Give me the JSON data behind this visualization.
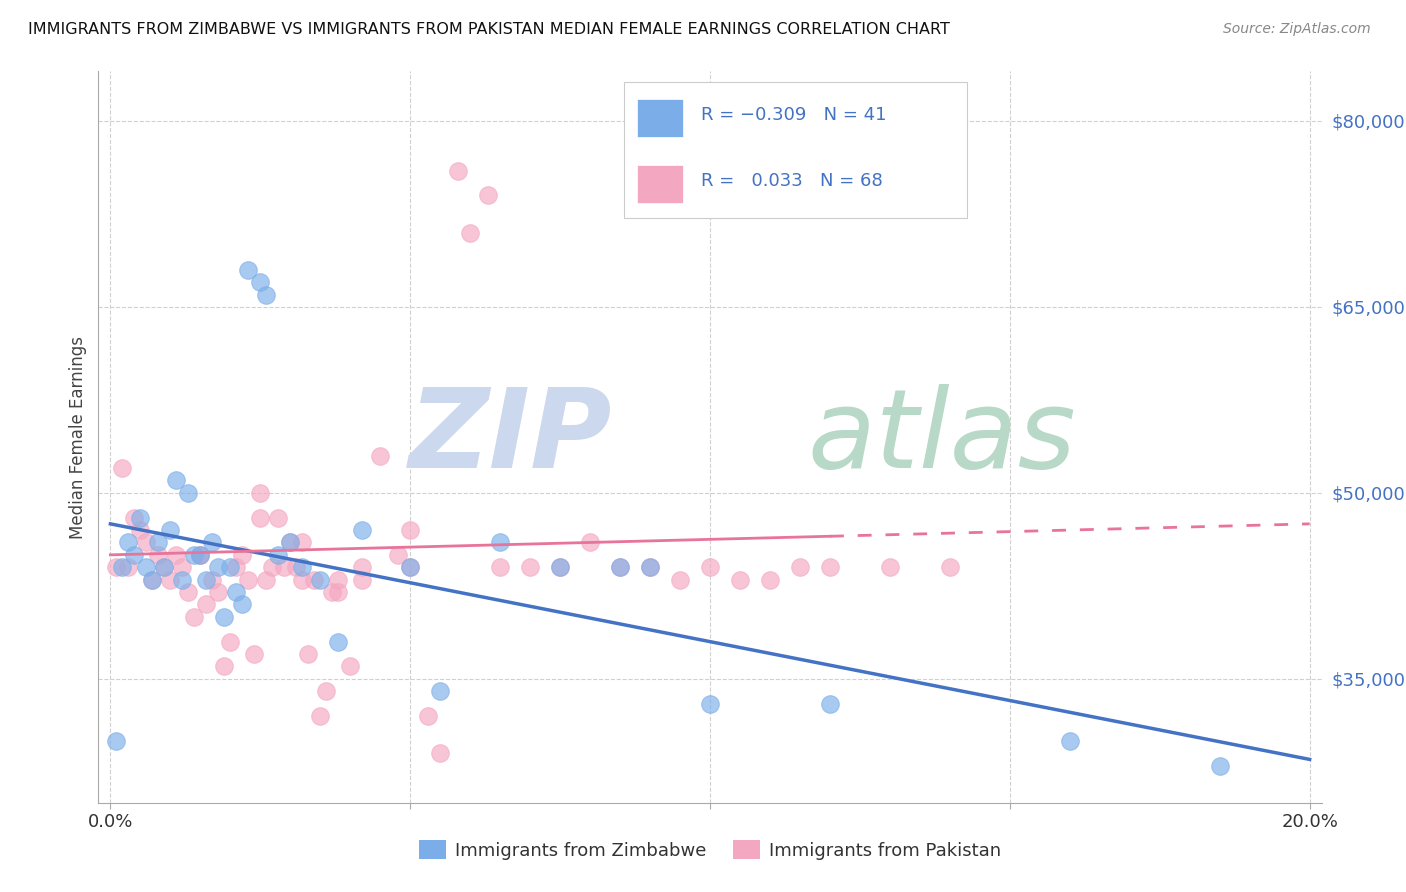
{
  "title": "IMMIGRANTS FROM ZIMBABWE VS IMMIGRANTS FROM PAKISTAN MEDIAN FEMALE EARNINGS CORRELATION CHART",
  "source": "Source: ZipAtlas.com",
  "ylabel": "Median Female Earnings",
  "right_y_ticks": [
    35000,
    50000,
    65000,
    80000
  ],
  "right_y_tick_labels": [
    "$35,000",
    "$50,000",
    "$65,000",
    "$80,000"
  ],
  "y_min": 25000,
  "y_max": 84000,
  "x_min": -0.002,
  "x_max": 0.202,
  "zimbabwe_line_color": "#4472C4",
  "pakistan_line_color": "#E8749A",
  "dot_blue": "#7BAEE8",
  "dot_pink": "#F4A7C0",
  "background_color": "#ffffff",
  "grid_color": "#d0d0d0",
  "r_zim": -0.309,
  "n_zim": 41,
  "r_pak": 0.033,
  "n_pak": 68,
  "zimbabwe_x": [
    0.001,
    0.002,
    0.003,
    0.004,
    0.005,
    0.006,
    0.007,
    0.008,
    0.009,
    0.01,
    0.011,
    0.012,
    0.013,
    0.014,
    0.015,
    0.016,
    0.017,
    0.018,
    0.019,
    0.02,
    0.021,
    0.022,
    0.023,
    0.025,
    0.026,
    0.028,
    0.03,
    0.032,
    0.035,
    0.038,
    0.042,
    0.05,
    0.055,
    0.065,
    0.075,
    0.085,
    0.09,
    0.1,
    0.12,
    0.16,
    0.185
  ],
  "zimbabwe_y": [
    30000,
    44000,
    46000,
    45000,
    48000,
    44000,
    43000,
    46000,
    44000,
    47000,
    51000,
    43000,
    50000,
    45000,
    45000,
    43000,
    46000,
    44000,
    40000,
    44000,
    42000,
    41000,
    68000,
    67000,
    66000,
    45000,
    46000,
    44000,
    43000,
    38000,
    47000,
    44000,
    34000,
    46000,
    44000,
    44000,
    44000,
    33000,
    33000,
    30000,
    28000
  ],
  "pakistan_x": [
    0.001,
    0.002,
    0.003,
    0.004,
    0.005,
    0.006,
    0.007,
    0.008,
    0.009,
    0.01,
    0.011,
    0.012,
    0.013,
    0.014,
    0.015,
    0.016,
    0.017,
    0.018,
    0.019,
    0.02,
    0.021,
    0.022,
    0.023,
    0.024,
    0.025,
    0.026,
    0.027,
    0.028,
    0.029,
    0.03,
    0.031,
    0.032,
    0.033,
    0.034,
    0.035,
    0.036,
    0.037,
    0.038,
    0.04,
    0.042,
    0.045,
    0.048,
    0.05,
    0.053,
    0.055,
    0.058,
    0.063,
    0.07,
    0.075,
    0.08,
    0.085,
    0.09,
    0.095,
    0.1,
    0.105,
    0.11,
    0.115,
    0.12,
    0.13,
    0.14,
    0.06,
    0.065,
    0.038,
    0.042,
    0.05,
    0.025,
    0.032,
    0.015
  ],
  "pakistan_y": [
    44000,
    52000,
    44000,
    48000,
    47000,
    46000,
    43000,
    45000,
    44000,
    43000,
    45000,
    44000,
    42000,
    40000,
    45000,
    41000,
    43000,
    42000,
    36000,
    38000,
    44000,
    45000,
    43000,
    37000,
    50000,
    43000,
    44000,
    48000,
    44000,
    46000,
    44000,
    43000,
    37000,
    43000,
    32000,
    34000,
    42000,
    43000,
    36000,
    44000,
    53000,
    45000,
    44000,
    32000,
    29000,
    76000,
    74000,
    44000,
    44000,
    46000,
    44000,
    44000,
    43000,
    44000,
    43000,
    43000,
    44000,
    44000,
    44000,
    44000,
    71000,
    44000,
    42000,
    43000,
    47000,
    48000,
    46000,
    45000
  ]
}
